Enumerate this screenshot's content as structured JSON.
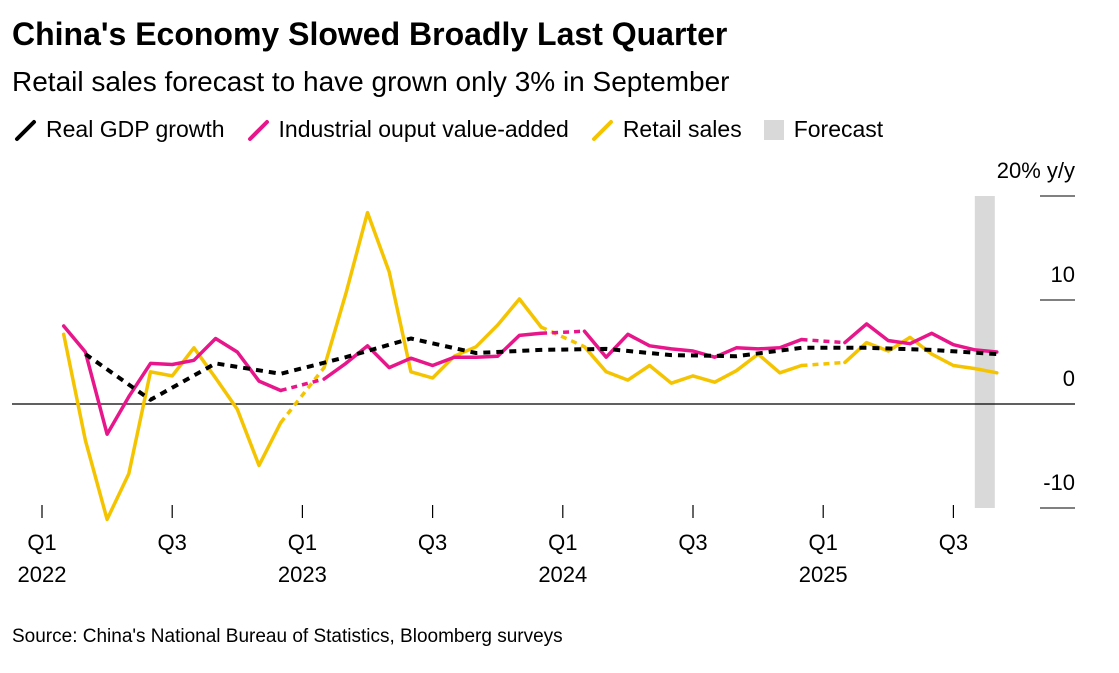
{
  "chart_data": {
    "type": "line",
    "title": "China's Economy Slowed Broadly Last Quarter",
    "subtitle": "Retail sales forecast to have grown only 3% in September",
    "source": "Source: China's National Bureau of Statistics, Bloomberg surveys",
    "categories": [
      "Q1\n2022",
      null,
      null,
      null,
      null,
      null,
      "Q3",
      null,
      null,
      null,
      null,
      null,
      "Q1\n2023",
      null,
      null,
      null,
      null,
      null,
      "Q3",
      null,
      null,
      null,
      null,
      null,
      "Q1\n2024",
      null,
      null,
      null,
      null,
      null,
      "Q3",
      null,
      null,
      null,
      null,
      null,
      "Q1\n2025",
      null,
      null,
      null,
      null,
      null,
      "Q3",
      null,
      null
    ],
    "series": [
      {
        "name": "Real GDP growth",
        "color": "#000000",
        "dashed": true,
        "x": [
          2,
          5,
          8,
          11,
          14,
          17,
          20,
          23,
          26,
          29,
          32,
          35,
          38,
          41,
          44
        ],
        "values": [
          4.8,
          0.4,
          3.9,
          2.9,
          4.5,
          6.3,
          4.9,
          5.2,
          5.3,
          4.7,
          4.6,
          5.4,
          5.4,
          5.2,
          4.8
        ]
      },
      {
        "name": "Industrial ouput value-added",
        "color": "#e8168b",
        "values": [
          null,
          7.5,
          5.0,
          -2.9,
          0.7,
          3.9,
          3.8,
          4.2,
          6.3,
          5.0,
          2.2,
          1.3,
          null,
          2.4,
          3.9,
          5.6,
          3.5,
          4.4,
          3.7,
          4.5,
          4.5,
          4.6,
          6.6,
          6.8,
          null,
          7.0,
          4.5,
          6.7,
          5.6,
          5.3,
          5.1,
          4.5,
          5.4,
          5.3,
          5.4,
          6.2,
          null,
          5.9,
          7.7,
          6.1,
          5.8,
          6.8,
          5.7,
          5.2,
          5.0
        ]
      },
      {
        "name": "Retail sales",
        "color": "#f5c400",
        "values": [
          null,
          6.7,
          -3.5,
          -11.1,
          -6.7,
          3.1,
          2.7,
          5.4,
          2.5,
          -0.5,
          -5.9,
          -1.8,
          null,
          3.5,
          10.6,
          18.4,
          12.7,
          3.1,
          2.5,
          4.6,
          5.5,
          7.6,
          10.1,
          7.4,
          null,
          5.5,
          3.1,
          2.3,
          3.7,
          2.0,
          2.7,
          2.1,
          3.2,
          4.8,
          3.0,
          3.7,
          null,
          4.0,
          5.9,
          5.1,
          6.4,
          4.8,
          3.7,
          3.4,
          3.0
        ]
      }
    ],
    "forecast": {
      "name": "Forecast",
      "color": "#d9d9d9"
    },
    "ylim": [
      -10,
      20
    ],
    "yticks": [
      -10,
      0,
      10,
      {
        "value": 20,
        "label": "20% y/y"
      }
    ]
  }
}
